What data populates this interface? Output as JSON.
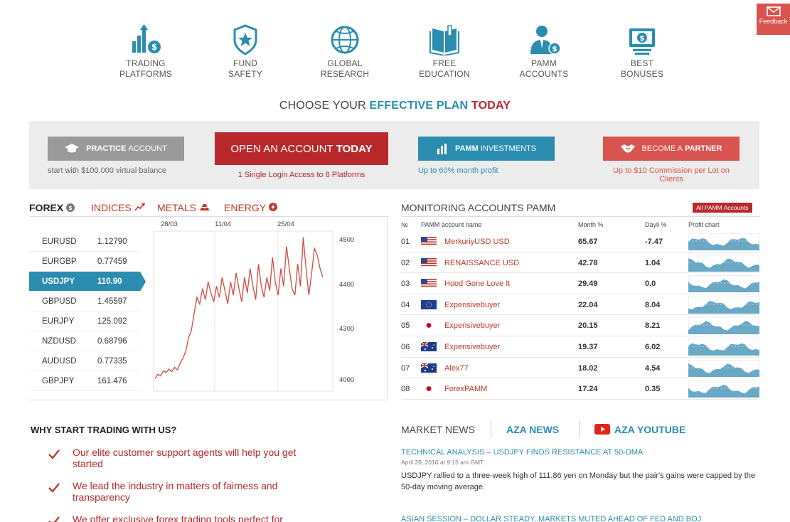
{
  "feedback": {
    "label": "Feedback",
    "icon": "mail-icon"
  },
  "features": [
    {
      "line1": "TRADING",
      "line2": "PLATFORMS",
      "icon": "trading-platforms-icon"
    },
    {
      "line1": "FUND",
      "line2": "SAFETY",
      "icon": "shield-star-icon"
    },
    {
      "line1": "GLOBAL",
      "line2": "RESEARCH",
      "icon": "globe-icon"
    },
    {
      "line1": "FREE",
      "line2": "EDUCATION",
      "icon": "book-icon"
    },
    {
      "line1": "PAMM",
      "line2": "ACCOUNTS",
      "icon": "user-dollar-icon"
    },
    {
      "line1": "BEST",
      "line2": "BONUSES",
      "icon": "money-icon"
    }
  ],
  "heading": {
    "prefix": "CHOOSE YOUR ",
    "blue": "EFFECTIVE PLAN",
    "red": "TODAY"
  },
  "plans": {
    "practice": {
      "bold": "PRACTICE",
      "rest": "ACCOUNT",
      "sub": "start with $100.000 virtual balance"
    },
    "open": {
      "normal": "OPEN AN ACCOUNT",
      "bold": "TODAY",
      "sub": "1 Single Login Access to 8 Platforms"
    },
    "pamm": {
      "bold": "PAMM",
      "rest": "INVESTMENTS",
      "sub": "Up to 60% month profit"
    },
    "partner": {
      "normal": "BECOME A",
      "bold": "PARTNER",
      "sub": "Up to $10 Commission per Lot on Clients"
    }
  },
  "market_tabs": [
    {
      "label": "FOREX"
    },
    {
      "label": "INDICES"
    },
    {
      "label": "METALS"
    },
    {
      "label": "ENERGY"
    }
  ],
  "forex": [
    {
      "symbol": "EURUSD",
      "value": "1.12790"
    },
    {
      "symbol": "EURGBP",
      "value": "0.77459"
    },
    {
      "symbol": "USDJPY",
      "value": "110.90"
    },
    {
      "symbol": "GBPUSD",
      "value": "1.45597"
    },
    {
      "symbol": "EURJPY",
      "value": "125.092"
    },
    {
      "symbol": "NZDUSD",
      "value": "0.68796"
    },
    {
      "symbol": "AUDUSD",
      "value": "0.77335"
    },
    {
      "symbol": "GBPJPY",
      "value": "161.476"
    }
  ],
  "chart_data": {
    "type": "line",
    "title": "",
    "xlabel": "",
    "ylabel": "",
    "x_ticks": [
      "28/03",
      "11/04",
      "25/04"
    ],
    "y_ticks": [
      4500,
      4400,
      4300,
      4000
    ],
    "grid": true,
    "series": [
      {
        "values": [
          4020,
          4045,
          4035,
          4065,
          4055,
          4075,
          4060,
          4085,
          4070,
          4110,
          4140,
          4180,
          4260,
          4300,
          4340,
          4375,
          4360,
          4395,
          4370,
          4410,
          4385,
          4365,
          4400,
          4375,
          4420,
          4390,
          4360,
          4410,
          4380,
          4430,
          4395,
          4365,
          4420,
          4385,
          4440,
          4400,
          4370,
          4450,
          4400,
          4375,
          4420,
          4390,
          4465,
          4410,
          4380,
          4440,
          4400,
          4490,
          4440,
          4395,
          4380,
          4450,
          4400,
          4510,
          4440,
          4380,
          4430,
          4485,
          4470,
          4440,
          4420
        ]
      }
    ]
  },
  "pamm": {
    "title": "MONITORING ACCOUNTS PAMM",
    "all_label": "All PAMM Accounts",
    "headers": {
      "num": "№",
      "name": "PAMM account name",
      "month": "Month %",
      "daily": "Dayli %",
      "chart": "Profit chart"
    },
    "rows": [
      {
        "num": "01",
        "flag": "us",
        "name": "MerkuriyUSD USD",
        "month": "65.67",
        "daily": "-7.47"
      },
      {
        "num": "02",
        "flag": "us",
        "name": "RENAISSANCE USD",
        "month": "42.78",
        "daily": "1.04"
      },
      {
        "num": "03",
        "flag": "us",
        "name": "Hood Gone Love It",
        "month": "29.49",
        "daily": "0.0"
      },
      {
        "num": "04",
        "flag": "eu",
        "name": "Expensivebuyer",
        "month": "22.04",
        "daily": "8.04"
      },
      {
        "num": "05",
        "flag": "jp",
        "name": "Expensivebuyer",
        "month": "20.15",
        "daily": "8.21"
      },
      {
        "num": "06",
        "flag": "au",
        "name": "Expensivebuyer",
        "month": "19.37",
        "daily": "6.02"
      },
      {
        "num": "07",
        "flag": "au",
        "name": "Alex77",
        "month": "18.02",
        "daily": "4.54"
      },
      {
        "num": "08",
        "flag": "jp",
        "name": "ForexPAMM",
        "month": "17.24",
        "daily": "0.35"
      }
    ]
  },
  "why": {
    "title": "WHY START TRADING WITH US?",
    "items": [
      "Our elite customer support agents will help you get started",
      "We lead the industry in matters of fairness and transparency",
      "We offer exclusive forex trading tools perfect for"
    ]
  },
  "news": {
    "tabs": [
      "MARKET NEWS",
      "AZA NEWS",
      "AZA YOUTUBE"
    ],
    "items": [
      {
        "headline": "TECHNICAL ANALYSIS – USDJPY FINDS RESISTANCE AT 50-DMA",
        "date": "April 26, 2016 at 9:15 am GMT",
        "body": "USDJPY rallied to a three-week high of 111.86 yen on Monday but the pair's gains were capped by the 50-day moving average."
      },
      {
        "headline": "ASIAN SESSION – DOLLAR STEADY, MARKETS MUTED AHEAD OF FED AND BOJ",
        "date": "",
        "body": ""
      }
    ]
  },
  "colors": {
    "blue": "#2a8db0",
    "red": "#b9292c",
    "grey": "#9a9a9a",
    "salmon": "#d9534f"
  }
}
